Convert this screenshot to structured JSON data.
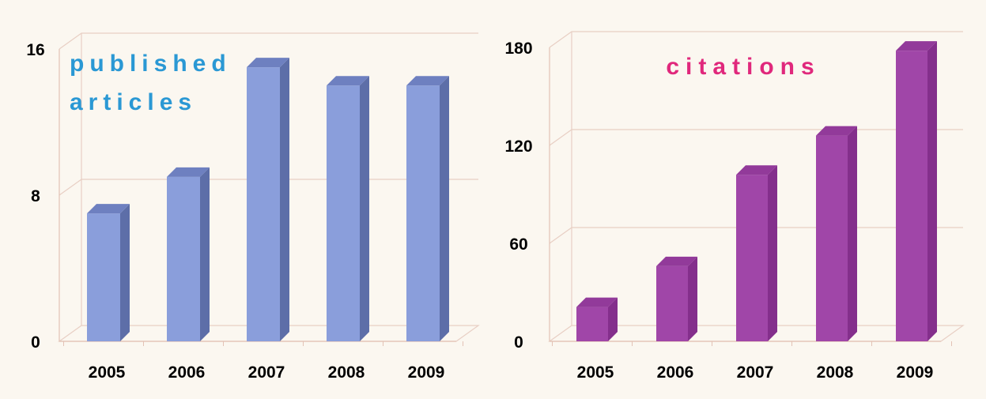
{
  "chart_data": [
    {
      "type": "bar",
      "title_lines": [
        "published",
        "articles"
      ],
      "title_color": "#2a98d4",
      "bar_front": "#8a9edb",
      "bar_side": "#5d6ea8",
      "bar_top": "#6e80c0",
      "categories": [
        "2005",
        "2006",
        "2007",
        "2008",
        "2009"
      ],
      "values": [
        7,
        9,
        15,
        14,
        14
      ],
      "ylim": [
        0,
        16
      ],
      "yticks": [
        "0",
        "8",
        "16"
      ],
      "grid": true
    },
    {
      "type": "bar",
      "title_lines": [
        "citations"
      ],
      "title_color": "#e0287c",
      "bar_front": "#a046a8",
      "bar_side": "#842f8c",
      "bar_top": "#923a9a",
      "categories": [
        "2005",
        "2006",
        "2007",
        "2008",
        "2009"
      ],
      "values": [
        21,
        46,
        102,
        126,
        178
      ],
      "ylim": [
        0,
        180
      ],
      "yticks": [
        "0",
        "60",
        "120",
        "180"
      ],
      "grid": true
    }
  ]
}
